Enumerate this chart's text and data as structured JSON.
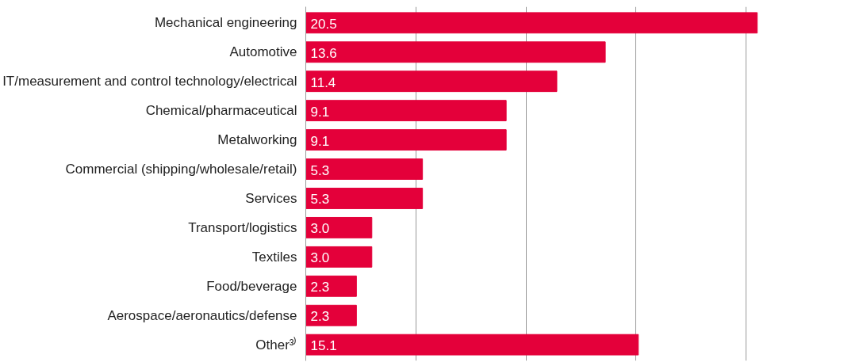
{
  "chart_data": {
    "type": "bar",
    "orientation": "horizontal",
    "categories": [
      "Mechanical engineering",
      "Automotive",
      "IT/measurement and control technology/electrical",
      "Chemical/pharmaceutical",
      "Metalworking",
      "Commercial (shipping/wholesale/retail)",
      "Services",
      "Transport/logistics",
      "Textiles",
      "Food/beverage",
      "Aerospace/aeronautics/defense",
      "Other³⁾"
    ],
    "values": [
      20.5,
      13.6,
      11.4,
      9.1,
      9.1,
      5.3,
      5.3,
      3.0,
      3.0,
      2.3,
      2.3,
      15.1
    ],
    "value_labels": [
      "20.5",
      "13.6",
      "11.4",
      "9.1",
      "9.1",
      "5.3",
      "5.3",
      "3.0",
      "3.0",
      "2.3",
      "2.3",
      "15.1"
    ],
    "color": "#e4003a",
    "xticks": [
      {
        "value": 0,
        "label": null
      },
      {
        "value": 5,
        "label": null
      },
      {
        "value": 10,
        "label": null
      },
      {
        "value": 15,
        "label": null
      },
      {
        "value": 20,
        "label": null
      }
    ],
    "grid": "x",
    "tick_labels": "y"
  }
}
